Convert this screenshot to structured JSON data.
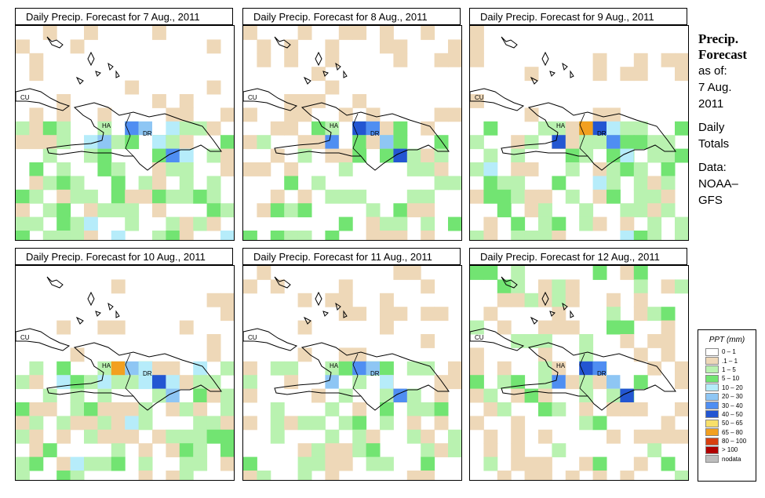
{
  "panels": [
    {
      "title": "Daily Precip. Forecast for  7 Aug., 2011"
    },
    {
      "title": "Daily Precip. Forecast for  8 Aug., 2011"
    },
    {
      "title": "Daily Precip. Forecast for  9 Aug., 2011"
    },
    {
      "title": "Daily Precip. Forecast for  10 Aug., 2011"
    },
    {
      "title": "Daily Precip. Forecast for  11 Aug., 2011"
    },
    {
      "title": "Daily Precip. Forecast for  12 Aug., 2011"
    }
  ],
  "map_labels": {
    "cu": "CU",
    "ha": "HA",
    "dr": "DR"
  },
  "sidebar": {
    "title_line1": "Precip.",
    "title_line2": "Forecast",
    "asof": "as of:",
    "date_line1": "7 Aug.",
    "date_line2": "2011",
    "daily": "Daily",
    "totals": "Totals",
    "data": "Data:",
    "source1": "NOAA–",
    "source2": "GFS"
  },
  "legend": {
    "title": "PPT (mm)",
    "items": [
      {
        "label": "0 – 1",
        "color": "#ffffff"
      },
      {
        "label": ".1 – 1",
        "color": "#eed8b8"
      },
      {
        "label": "1 – 5",
        "color": "#b9f2b0"
      },
      {
        "label": "5 – 10",
        "color": "#72e472"
      },
      {
        "label": "10 – 20",
        "color": "#b6ecfa"
      },
      {
        "label": "20 – 30",
        "color": "#8ec6f4"
      },
      {
        "label": "30 – 40",
        "color": "#4f8ef2"
      },
      {
        "label": "40 – 50",
        "color": "#2356d2"
      },
      {
        "label": "50 – 65",
        "color": "#f8e06a"
      },
      {
        "label": "65 – 80",
        "color": "#f2a020"
      },
      {
        "label": "80 – 100",
        "color": "#d84010"
      },
      {
        "label": "> 100",
        "color": "#b00000"
      },
      {
        "label": "nodata",
        "color": "#bdbdbd"
      }
    ]
  }
}
